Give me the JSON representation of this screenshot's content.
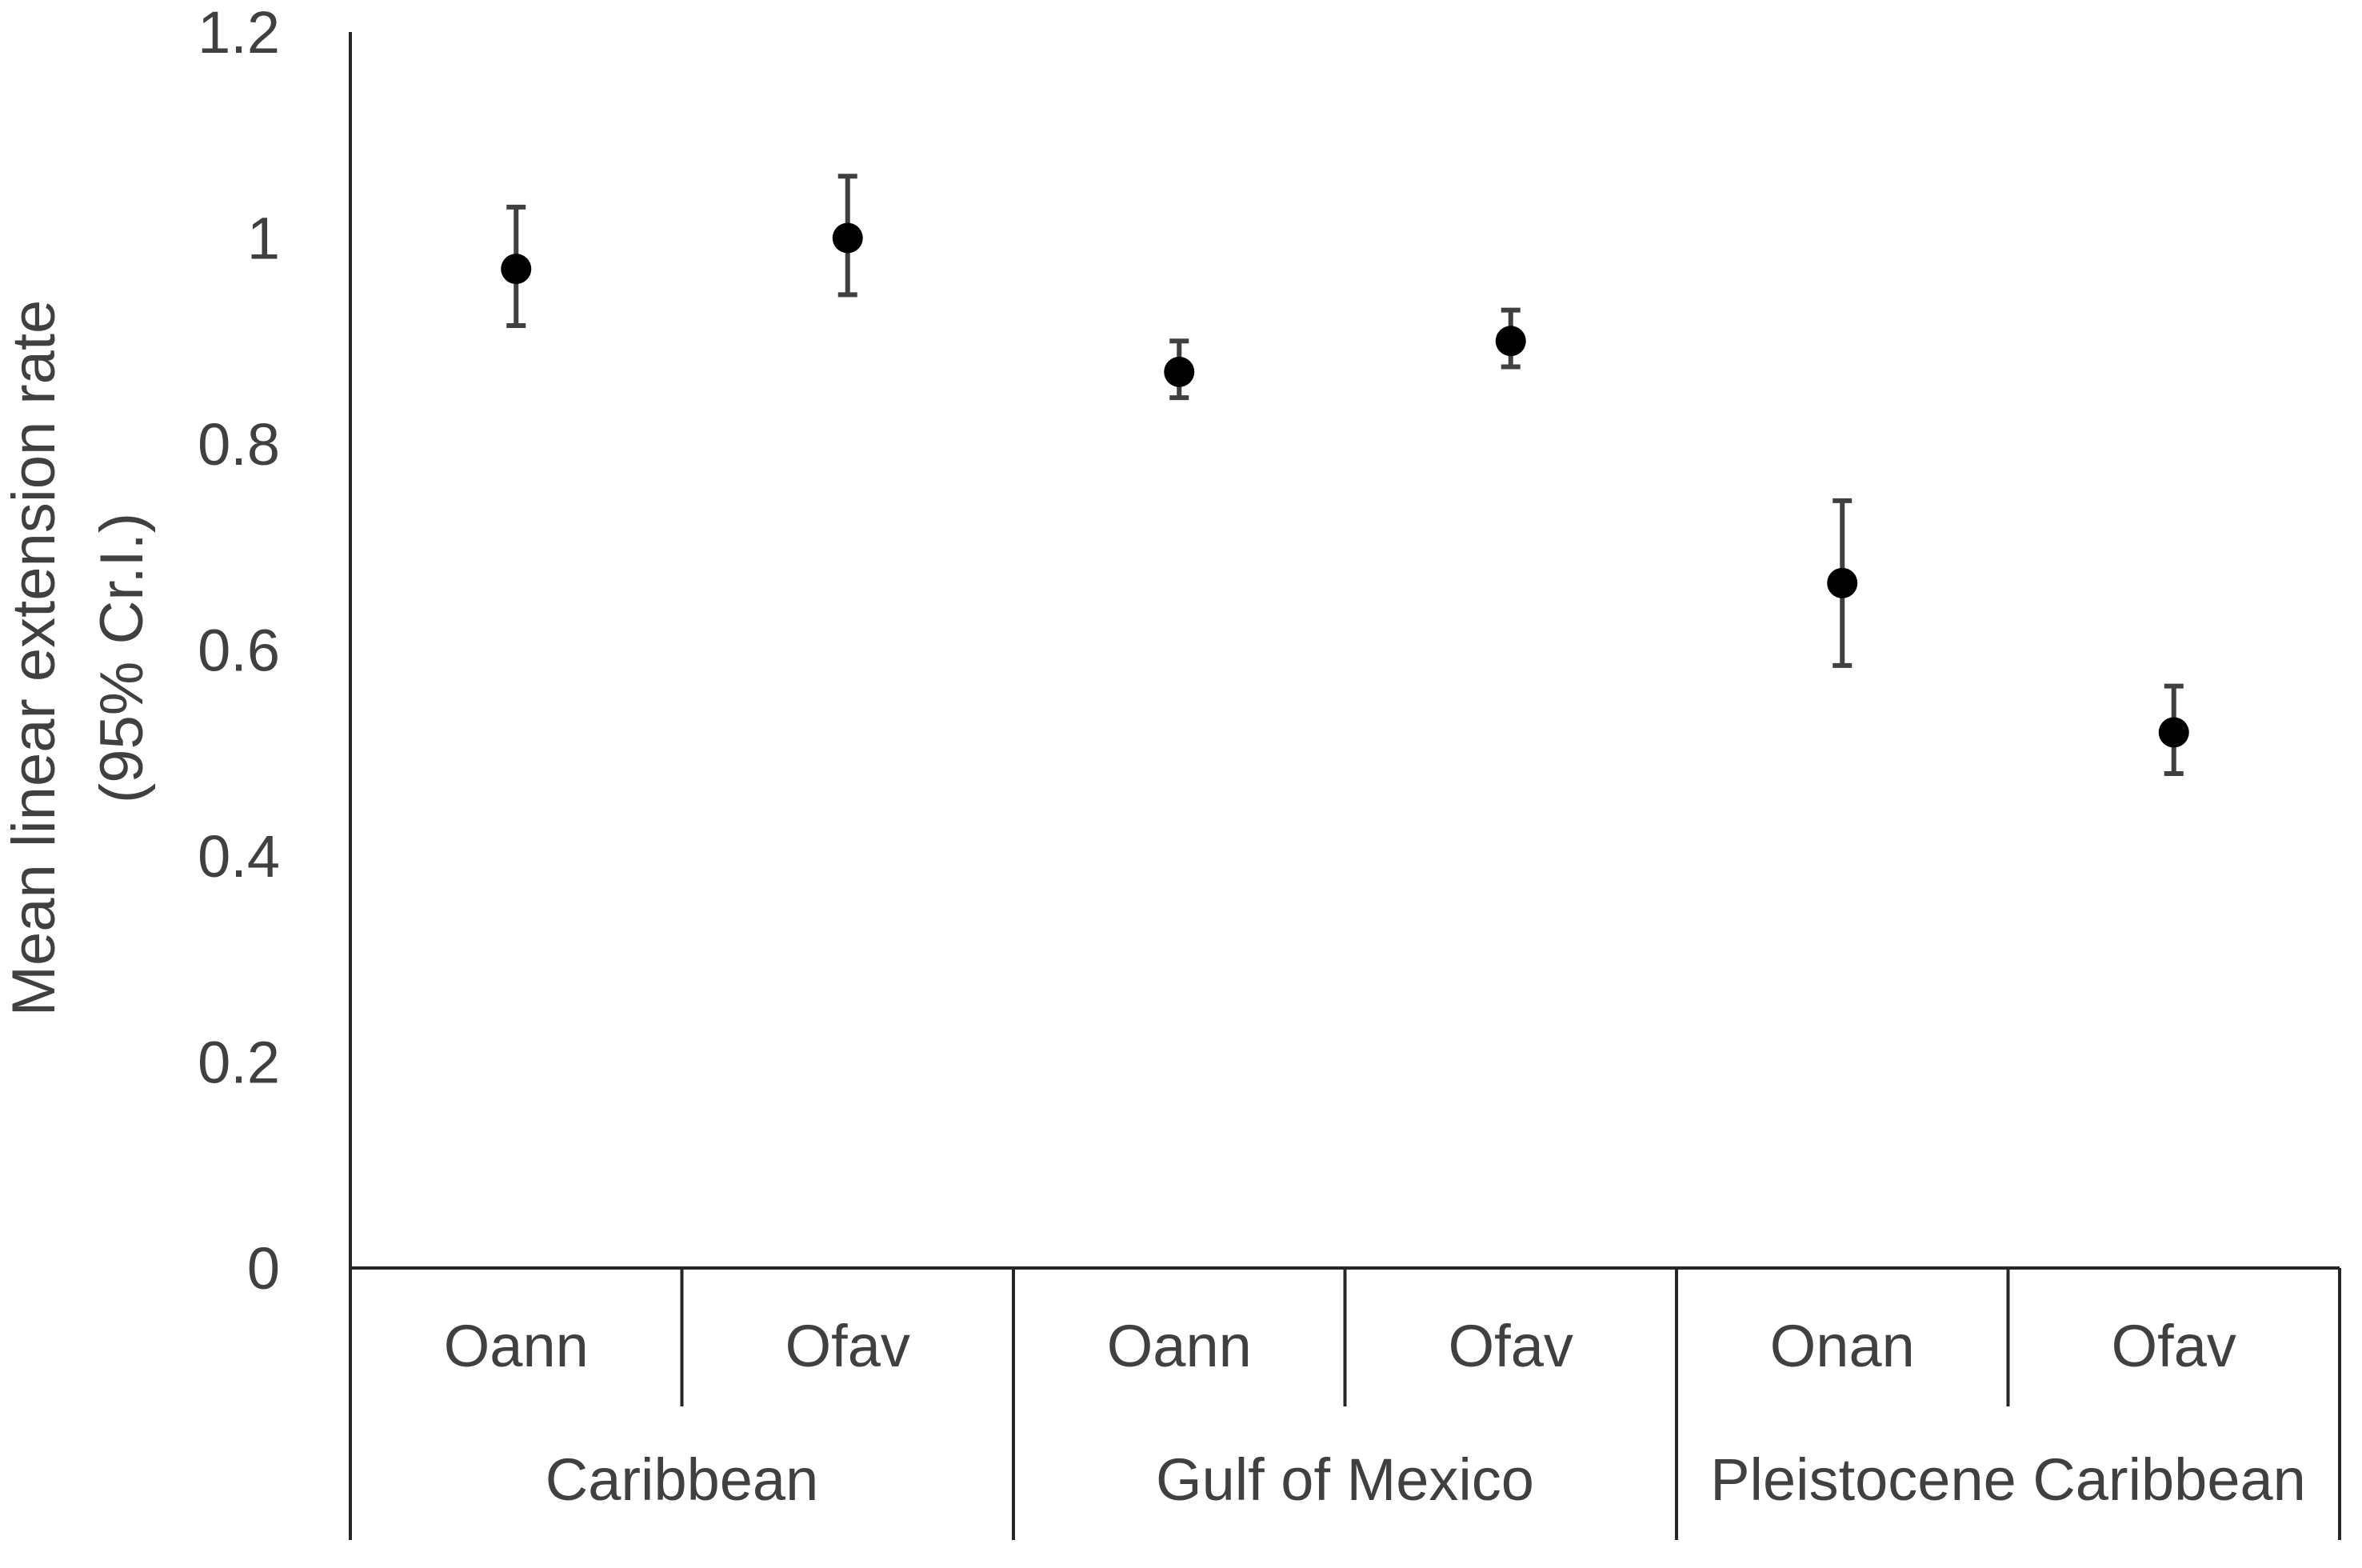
{
  "chart_data": {
    "type": "scatter",
    "title": "",
    "ylabel_lines": [
      "Mean linear extension rate",
      "(95% Cr.I.)"
    ],
    "ylim": [
      0,
      1.2
    ],
    "yticks": [
      "0",
      "0.2",
      "0.4",
      "0.6",
      "0.8",
      "1",
      "1.2"
    ],
    "ytick_values": [
      0,
      0.2,
      0.4,
      0.6,
      0.8,
      1.0,
      1.2
    ],
    "grid": false,
    "legend": "none",
    "groups": [
      {
        "label": "Caribbean",
        "categories": [
          "Oann",
          "Ofav"
        ]
      },
      {
        "label": "Gulf of Mexico",
        "categories": [
          "Oann",
          "Ofav"
        ]
      },
      {
        "label": "Pleistocene Caribbean",
        "categories": [
          "Onan",
          "Ofav"
        ]
      }
    ],
    "points": [
      {
        "group": "Caribbean",
        "category": "Oann",
        "mean": 0.97,
        "lower": 0.915,
        "upper": 1.03
      },
      {
        "group": "Caribbean",
        "category": "Ofav",
        "mean": 1.0,
        "lower": 0.945,
        "upper": 1.06
      },
      {
        "group": "Gulf of Mexico",
        "category": "Oann",
        "mean": 0.87,
        "lower": 0.845,
        "upper": 0.9
      },
      {
        "group": "Gulf of Mexico",
        "category": "Ofav",
        "mean": 0.9,
        "lower": 0.875,
        "upper": 0.93
      },
      {
        "group": "Pleistocene Caribbean",
        "category": "Onan",
        "mean": 0.665,
        "lower": 0.585,
        "upper": 0.745
      },
      {
        "group": "Pleistocene Caribbean",
        "category": "Ofav",
        "mean": 0.52,
        "lower": 0.48,
        "upper": 0.565
      }
    ],
    "colors": {
      "marker": "#000000",
      "errorbar": "#404040",
      "axis": "#262626",
      "text": "#404040"
    }
  }
}
